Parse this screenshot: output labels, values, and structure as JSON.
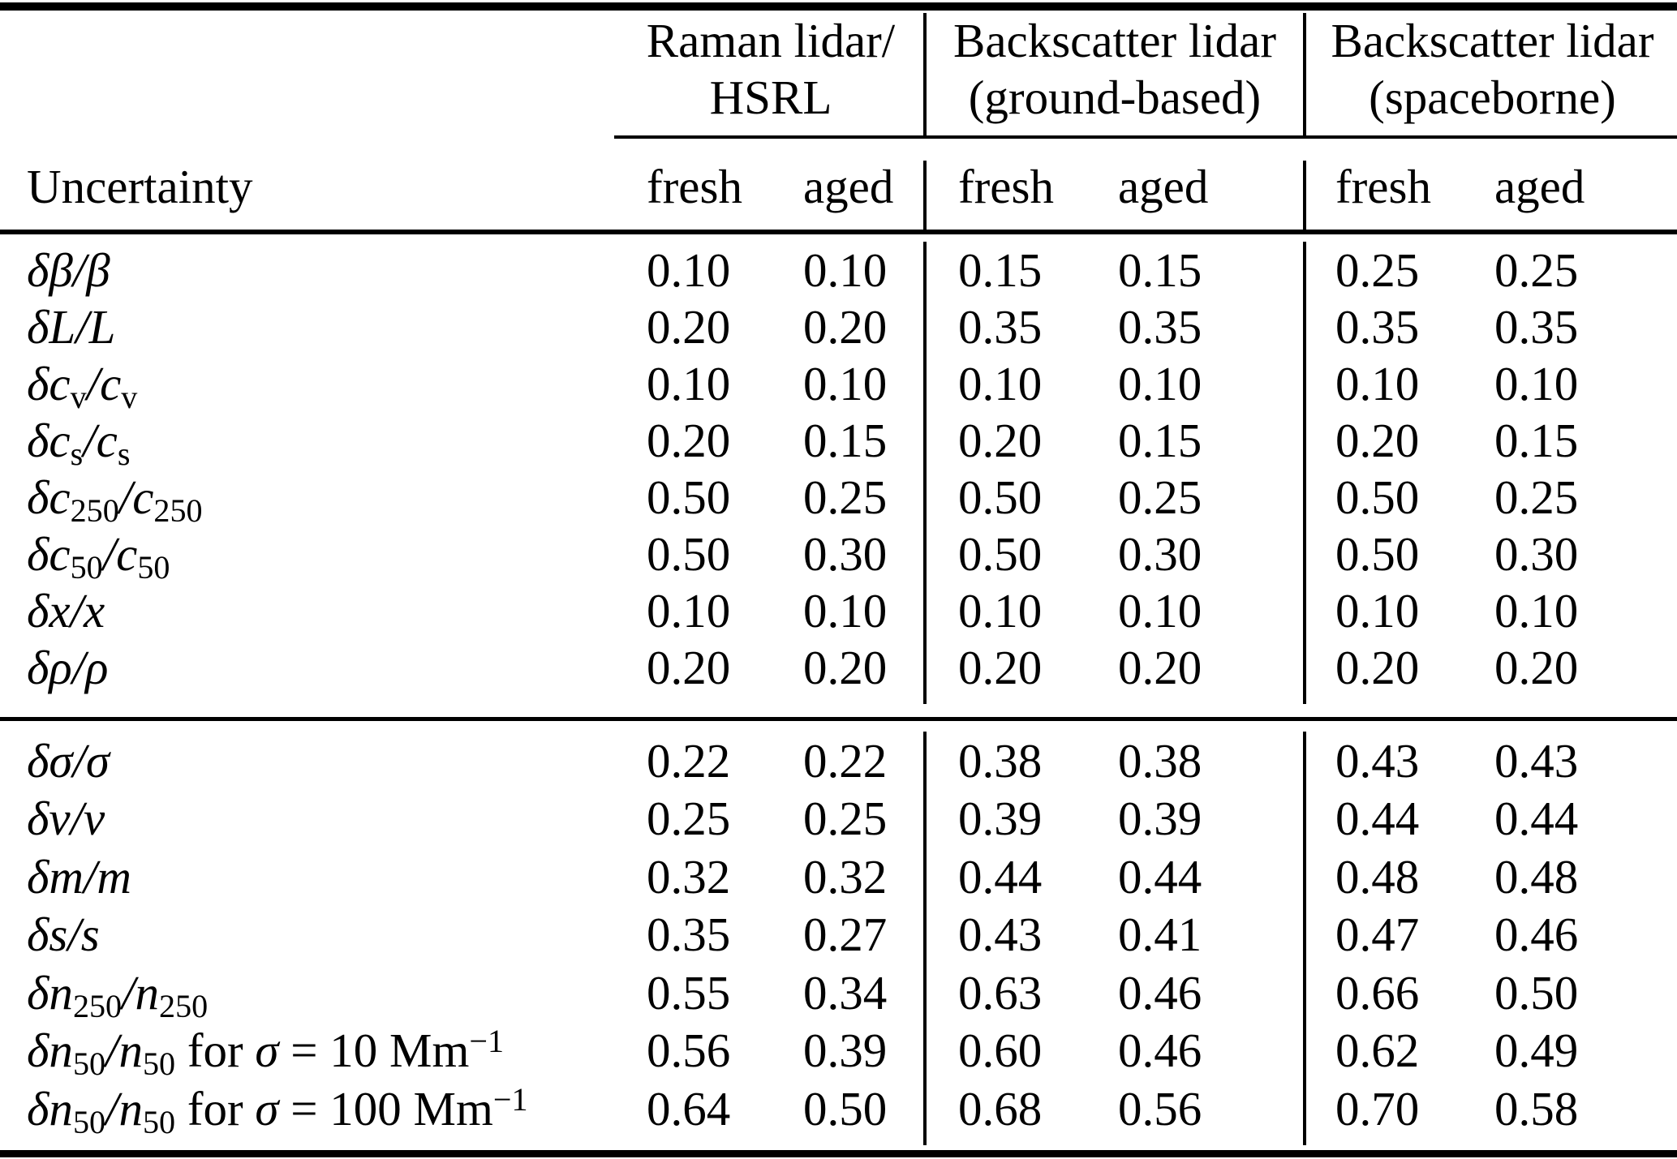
{
  "table": {
    "corner_label": "Uncertainty",
    "groups": [
      {
        "line1": "Raman lidar/",
        "line2": "HSRL"
      },
      {
        "line1": "Backscatter lidar",
        "line2": "(ground-based)"
      },
      {
        "line1": "Backscatter lidar",
        "line2": "(spaceborne)"
      }
    ],
    "sub_headers": [
      "fresh",
      "aged",
      "fresh",
      "aged",
      "fresh",
      "aged"
    ],
    "sections": [
      {
        "rows": [
          {
            "label": [
              [
                "i",
                "δβ/β"
              ]
            ],
            "values": [
              "0.10",
              "0.10",
              "0.15",
              "0.15",
              "0.25",
              "0.25"
            ]
          },
          {
            "label": [
              [
                "i",
                "δL/L"
              ]
            ],
            "values": [
              "0.20",
              "0.20",
              "0.35",
              "0.35",
              "0.35",
              "0.35"
            ]
          },
          {
            "label": [
              [
                "i",
                "δc"
              ],
              [
                "sub",
                "v"
              ],
              [
                "i",
                "/c"
              ],
              [
                "sub",
                "v"
              ]
            ],
            "values": [
              "0.10",
              "0.10",
              "0.10",
              "0.10",
              "0.10",
              "0.10"
            ]
          },
          {
            "label": [
              [
                "i",
                "δc"
              ],
              [
                "sub",
                "s"
              ],
              [
                "i",
                "/c"
              ],
              [
                "sub",
                "s"
              ]
            ],
            "values": [
              "0.20",
              "0.15",
              "0.20",
              "0.15",
              "0.20",
              "0.15"
            ]
          },
          {
            "label": [
              [
                "i",
                "δc"
              ],
              [
                "sub",
                "250"
              ],
              [
                "i",
                "/c"
              ],
              [
                "sub",
                "250"
              ]
            ],
            "values": [
              "0.50",
              "0.25",
              "0.50",
              "0.25",
              "0.50",
              "0.25"
            ]
          },
          {
            "label": [
              [
                "i",
                "δc"
              ],
              [
                "sub",
                "50"
              ],
              [
                "i",
                "/c"
              ],
              [
                "sub",
                "50"
              ]
            ],
            "values": [
              "0.50",
              "0.30",
              "0.50",
              "0.30",
              "0.50",
              "0.30"
            ]
          },
          {
            "label": [
              [
                "i",
                "δx/x"
              ]
            ],
            "values": [
              "0.10",
              "0.10",
              "0.10",
              "0.10",
              "0.10",
              "0.10"
            ]
          },
          {
            "label": [
              [
                "i",
                "δρ/ρ"
              ]
            ],
            "values": [
              "0.20",
              "0.20",
              "0.20",
              "0.20",
              "0.20",
              "0.20"
            ]
          }
        ]
      },
      {
        "rows": [
          {
            "label": [
              [
                "i",
                "δσ/σ"
              ]
            ],
            "values": [
              "0.22",
              "0.22",
              "0.38",
              "0.38",
              "0.43",
              "0.43"
            ]
          },
          {
            "label": [
              [
                "i",
                "δv/v"
              ]
            ],
            "values": [
              "0.25",
              "0.25",
              "0.39",
              "0.39",
              "0.44",
              "0.44"
            ]
          },
          {
            "label": [
              [
                "i",
                "δm/m"
              ]
            ],
            "values": [
              "0.32",
              "0.32",
              "0.44",
              "0.44",
              "0.48",
              "0.48"
            ]
          },
          {
            "label": [
              [
                "i",
                "δs/s"
              ]
            ],
            "values": [
              "0.35",
              "0.27",
              "0.43",
              "0.41",
              "0.47",
              "0.46"
            ]
          },
          {
            "label": [
              [
                "i",
                "δn"
              ],
              [
                "sub",
                "250"
              ],
              [
                "i",
                "/n"
              ],
              [
                "sub",
                "250"
              ]
            ],
            "values": [
              "0.55",
              "0.34",
              "0.63",
              "0.46",
              "0.66",
              "0.50"
            ]
          },
          {
            "label": [
              [
                "i",
                "δn"
              ],
              [
                "sub",
                "50"
              ],
              [
                "i",
                "/n"
              ],
              [
                "sub",
                "50"
              ],
              [
                "r",
                " for "
              ],
              [
                "i",
                "σ"
              ],
              [
                "r",
                " = 10 Mm"
              ],
              [
                "sup",
                "−1"
              ]
            ],
            "values": [
              "0.56",
              "0.39",
              "0.60",
              "0.46",
              "0.62",
              "0.49"
            ]
          },
          {
            "label": [
              [
                "i",
                "δn"
              ],
              [
                "sub",
                "50"
              ],
              [
                "i",
                "/n"
              ],
              [
                "sub",
                "50"
              ],
              [
                "r",
                " for "
              ],
              [
                "i",
                "σ"
              ],
              [
                "r",
                " = 100 Mm"
              ],
              [
                "sup",
                "−1"
              ]
            ],
            "values": [
              "0.64",
              "0.50",
              "0.68",
              "0.56",
              "0.70",
              "0.58"
            ]
          }
        ]
      }
    ]
  }
}
